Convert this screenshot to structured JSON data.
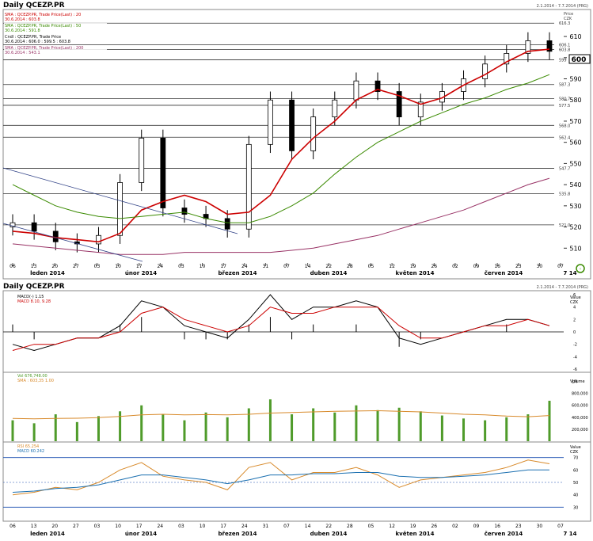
{
  "upper": {
    "title": "Daily QCEZP.PR",
    "range": "2.1.2014 - 7.7.2014 (PRG)",
    "units_price": "Price",
    "units_czk": "CZK",
    "legend": [
      {
        "label": "SMA : QCEZP.PR, Trade Price(Last) : 20",
        "value": "30.6.2014 : 603.8",
        "color": "#cc0000"
      },
      {
        "label": "SMA : QCEZP.PR, Trade Price(Last) : 50",
        "value": "30.6.2014 : 591.8",
        "color": "#3a8a00"
      },
      {
        "label": "Cndl : QCEZP.PR, Trade Price",
        "value": "30.6.2014 : 606.0 : 599.5 : 603.8",
        "color": "#000000"
      },
      {
        "label": "SMA : QCEZP.PR, Trade Price(Last) : 200",
        "value": "30.6.2014 : 543.1",
        "color": "#993366"
      }
    ],
    "y_ticks": [
      "510",
      "520",
      "530",
      "540",
      "550",
      "560",
      "570",
      "580",
      "590",
      "600",
      "610"
    ],
    "levels": [
      "616.3",
      "606.1",
      "603.8",
      "599",
      "587.3",
      "580.7",
      "577.5",
      "568.0",
      "562.4",
      "547.7",
      "535.8",
      "521.0"
    ],
    "last_price": "600"
  },
  "x_axis": {
    "days": [
      "06",
      "13",
      "20",
      "27",
      "03",
      "10",
      "17",
      "24",
      "03",
      "10",
      "17",
      "24",
      "31",
      "07",
      "14",
      "22",
      "28",
      "05",
      "12",
      "19",
      "26",
      "02",
      "09",
      "16",
      "23",
      "30",
      "07"
    ],
    "months": [
      "leden 2014",
      "únor 2014",
      "březen 2014",
      "duben 2014",
      "květen 2014",
      "červen 2014"
    ],
    "end_label": "7 14"
  },
  "lower": {
    "title": "Daily QCEZP.PR",
    "range": "2.1.2014 - 7.7.2014 (PRG)",
    "macd_legend": [
      "MACD(-) 1.15",
      "MACD 8.10, 9.28"
    ],
    "macd_units": [
      "Value",
      "CZK"
    ],
    "macd_ticks": [
      "6",
      "4",
      "2",
      "0",
      "-2",
      "-4",
      "-6"
    ],
    "vol_legend": [
      "Vol 676,748.00",
      "SMA : 603,35 1.00"
    ],
    "vol_units": "Volume",
    "vol_ticks": [
      "1M",
      "800,000",
      "600,000",
      "400,000",
      "200,000"
    ],
    "rsi_legend": [
      "RSI 65.254",
      "MACD 60.242"
    ],
    "rsi_units": [
      "Value",
      "CZK"
    ],
    "rsi_ticks": [
      "70",
      "60",
      "50",
      "40",
      "30"
    ]
  },
  "chart_data": [
    {
      "type": "line",
      "title": "Daily QCEZP.PR",
      "ylabel": "Price CZK",
      "ylim": [
        503,
        622
      ],
      "x": [
        "2014-01-06",
        "2014-01-13",
        "2014-01-20",
        "2014-01-27",
        "2014-02-03",
        "2014-02-10",
        "2014-02-17",
        "2014-02-24",
        "2014-03-03",
        "2014-03-10",
        "2014-03-17",
        "2014-03-24",
        "2014-03-31",
        "2014-04-07",
        "2014-04-14",
        "2014-04-22",
        "2014-04-28",
        "2014-05-05",
        "2014-05-12",
        "2014-05-19",
        "2014-05-26",
        "2014-06-02",
        "2014-06-09",
        "2014-06-16",
        "2014-06-23",
        "2014-06-30"
      ],
      "series": [
        {
          "name": "Cndl : QCEZP.PR, Trade Price",
          "values": [
            522,
            518,
            513,
            512,
            516,
            541,
            562,
            529,
            526,
            524,
            519,
            559,
            580,
            556,
            572,
            580,
            589,
            584,
            572,
            579,
            584,
            590,
            597,
            602,
            608,
            603
          ]
        },
        {
          "name": "SMA : QCEZP.PR, Trade Price(Last) : 20",
          "values": [
            518,
            517,
            515,
            514,
            513,
            517,
            528,
            532,
            535,
            532,
            526,
            527,
            535,
            552,
            562,
            570,
            580,
            585,
            582,
            578,
            581,
            587,
            592,
            598,
            603,
            604
          ]
        },
        {
          "name": "SMA : QCEZP.PR, Trade Price(Last) : 50",
          "values": [
            540,
            535,
            530,
            527,
            525,
            524,
            525,
            526,
            527,
            524,
            522,
            522,
            525,
            530,
            536,
            545,
            553,
            560,
            565,
            570,
            574,
            578,
            581,
            585,
            588,
            592
          ]
        },
        {
          "name": "SMA : QCEZP.PR, Trade Price(Last) : 200",
          "values": [
            512,
            511,
            510,
            509,
            508,
            507,
            507,
            507,
            508,
            508,
            508,
            508,
            508,
            509,
            510,
            512,
            514,
            516,
            519,
            522,
            525,
            528,
            532,
            536,
            540,
            543
          ]
        }
      ]
    },
    {
      "type": "line",
      "title": "MACD",
      "ylim": [
        -6,
        6
      ],
      "series": [
        {
          "name": "MACD(-)",
          "values": [
            -2,
            -3,
            -2,
            -1,
            -1,
            1,
            5,
            4,
            1,
            0,
            -1,
            2,
            6,
            2,
            4,
            4,
            5,
            4,
            -1,
            -2,
            -1,
            0,
            1,
            2,
            2,
            1
          ]
        },
        {
          "name": "MACD",
          "values": [
            -3,
            -2,
            -2,
            -1,
            -1,
            0,
            3,
            4,
            2,
            1,
            0,
            1,
            4,
            3,
            3,
            4,
            4,
            4,
            1,
            -1,
            -1,
            0,
            1,
            1,
            2,
            1
          ]
        }
      ]
    },
    {
      "type": "bar",
      "title": "Volume",
      "ylim": [
        0,
        1100000
      ],
      "series": [
        {
          "name": "Vol",
          "values": [
            350000,
            300000,
            450000,
            320000,
            420000,
            500000,
            600000,
            450000,
            350000,
            480000,
            400000,
            550000,
            700000,
            450000,
            550000,
            480000,
            600000,
            520000,
            560000,
            500000,
            430000,
            380000,
            350000,
            400000,
            450000,
            676748
          ]
        },
        {
          "name": "SMA",
          "values": [
            380000,
            375000,
            380000,
            385000,
            395000,
            415000,
            440000,
            450000,
            440000,
            445000,
            440000,
            450000,
            470000,
            480000,
            490000,
            500000,
            505000,
            510000,
            500000,
            490000,
            470000,
            450000,
            440000,
            420000,
            410000,
            430000
          ]
        }
      ]
    },
    {
      "type": "line",
      "title": "RSI",
      "ylim": [
        20,
        80
      ],
      "series": [
        {
          "name": "RSI",
          "values": [
            40,
            42,
            46,
            44,
            50,
            60,
            66,
            55,
            52,
            50,
            44,
            62,
            66,
            52,
            58,
            58,
            62,
            56,
            46,
            52,
            54,
            56,
            58,
            62,
            68,
            65
          ]
        },
        {
          "name": "MACD",
          "values": [
            42,
            43,
            45,
            46,
            48,
            52,
            56,
            56,
            54,
            52,
            49,
            52,
            56,
            56,
            57,
            57,
            58,
            58,
            55,
            54,
            54,
            55,
            56,
            58,
            60,
            60
          ]
        }
      ]
    }
  ]
}
